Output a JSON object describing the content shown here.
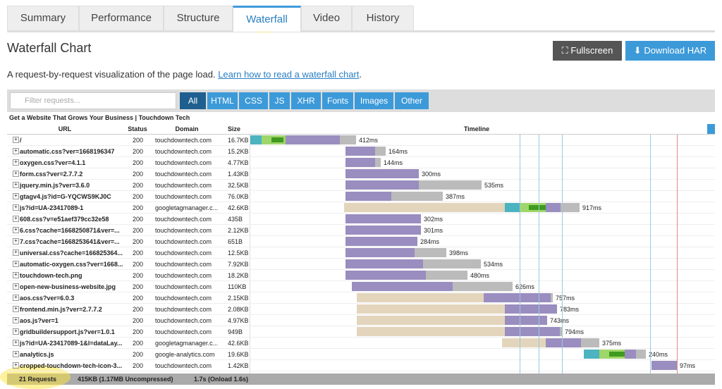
{
  "tabs": [
    "Summary",
    "Performance",
    "Structure",
    "Waterfall",
    "Video",
    "History"
  ],
  "heading": "Waterfall Chart",
  "buttons": {
    "fullscreen": "Fullscreen",
    "download": "Download HAR"
  },
  "description": {
    "text": "A request-by-request visualization of the page load.",
    "link": "Learn how to read a waterfall chart",
    "end": "."
  },
  "filter": {
    "placeholder": "Filter requests...",
    "types": [
      "All",
      "HTML",
      "CSS",
      "JS",
      "XHR",
      "Fonts",
      "Images",
      "Other"
    ]
  },
  "table": {
    "page_title": "Get a Website That Grows Your Business | Touchdown Tech",
    "headers": [
      "URL",
      "Status",
      "Domain",
      "Size",
      "Timeline"
    ],
    "rows": [
      [
        "/",
        "200",
        "touchdowntech.com",
        "16.7KB",
        "412ms"
      ],
      [
        "automatic.css?ver=1668196347",
        "200",
        "touchdowntech.com",
        "15.2KB",
        "164ms"
      ],
      [
        "oxygen.css?ver=4.1.1",
        "200",
        "touchdowntech.com",
        "4.77KB",
        "144ms"
      ],
      [
        "form.css?ver=2.7.7.2",
        "200",
        "touchdowntech.com",
        "1.43KB",
        "300ms"
      ],
      [
        "jquery.min.js?ver=3.6.0",
        "200",
        "touchdowntech.com",
        "32.5KB",
        "535ms"
      ],
      [
        "gtagv4.js?id=G-YQCWS9KJ0C",
        "200",
        "touchdowntech.com",
        "76.0KB",
        "387ms"
      ],
      [
        "js?id=UA-23417089-1",
        "200",
        "googletagmanager.c...",
        "42.6KB",
        "917ms"
      ],
      [
        "608.css?v=e51aef379cc32e58",
        "200",
        "touchdowntech.com",
        "435B",
        "302ms"
      ],
      [
        "6.css?cache=1668250871&ver=...",
        "200",
        "touchdowntech.com",
        "2.12KB",
        "301ms"
      ],
      [
        "7.css?cache=1668253641&ver=...",
        "200",
        "touchdowntech.com",
        "651B",
        "284ms"
      ],
      [
        "universal.css?cache=166825364...",
        "200",
        "touchdowntech.com",
        "12.5KB",
        "398ms"
      ],
      [
        "automatic-oxygen.css?ver=1668...",
        "200",
        "touchdowntech.com",
        "7.92KB",
        "534ms"
      ],
      [
        "touchdown-tech.png",
        "200",
        "touchdowntech.com",
        "18.2KB",
        "480ms"
      ],
      [
        "open-new-business-website.jpg",
        "200",
        "touchdowntech.com",
        "110KB",
        "626ms"
      ],
      [
        "aos.css?ver=6.0.3",
        "200",
        "touchdowntech.com",
        "2.15KB",
        "757ms"
      ],
      [
        "frontend.min.js?ver=2.7.7.2",
        "200",
        "touchdowntech.com",
        "2.08KB",
        "783ms"
      ],
      [
        "aos.js?ver=1",
        "200",
        "touchdowntech.com",
        "4.97KB",
        "743ms"
      ],
      [
        "gridbuildersupport.js?ver=1.0.1",
        "200",
        "touchdowntech.com",
        "949B",
        "794ms"
      ],
      [
        "js?id=UA-23417089-1&l=dataLay...",
        "200",
        "googletagmanager.c...",
        "42.6KB",
        "375ms"
      ],
      [
        "analytics.js",
        "200",
        "google-analytics.com",
        "19.6KB",
        "240ms"
      ],
      [
        "cropped-touchdown-tech-icon-3...",
        "200",
        "touchdowntech.com",
        "1.42KB",
        "97ms"
      ]
    ],
    "footer": [
      "21 Requests",
      "415KB (1.17MB Uncompressed)",
      "1.7s (Onload 1.6s)"
    ]
  }
}
